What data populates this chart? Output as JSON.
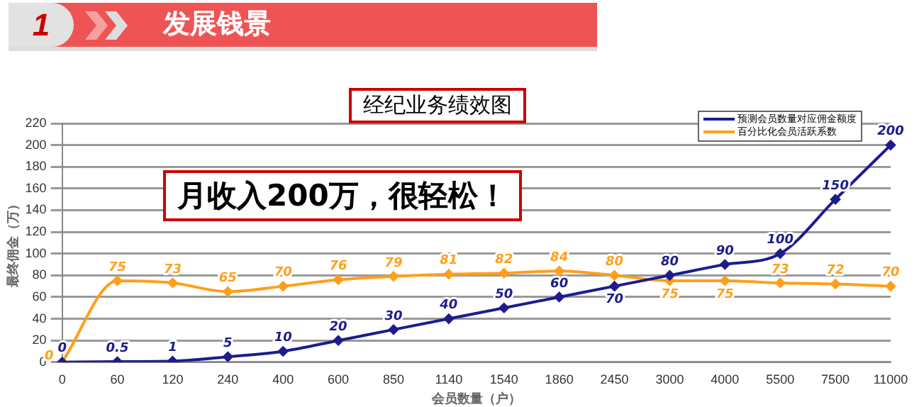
{
  "chart_data": {
    "type": "line",
    "title": "经纪业务绩效图",
    "xlabel": "会员数量（户）",
    "ylabel": "最终佣金（万）",
    "annotations": [
      "1",
      "发展钱景",
      "月收入200万，很轻松！"
    ],
    "categories": [
      "0",
      "60",
      "120",
      "240",
      "400",
      "600",
      "850",
      "1140",
      "1540",
      "1860",
      "2450",
      "3000",
      "4000",
      "5500",
      "7500",
      "11000"
    ],
    "series": [
      {
        "name": "预测会员数量对应佣金额度",
        "color": "#1c1c8f",
        "values": [
          0,
          0.5,
          1,
          5,
          10,
          20,
          30,
          40,
          50,
          60,
          70,
          80,
          90,
          100,
          150,
          200
        ]
      },
      {
        "name": "百分比化会员活跃系数",
        "color": "#ff9f1c",
        "values": [
          0,
          75,
          73,
          65,
          70,
          76,
          79,
          81,
          82,
          84,
          80,
          75,
          75,
          73,
          72,
          70
        ]
      }
    ],
    "ylim": [
      0,
      220
    ],
    "yticks": [
      0,
      20,
      40,
      60,
      80,
      100,
      120,
      140,
      160,
      180,
      200,
      220
    ],
    "grid": "y",
    "legend": "top right",
    "marker": "diamond",
    "line_style": "solid",
    "data_labels": true
  }
}
